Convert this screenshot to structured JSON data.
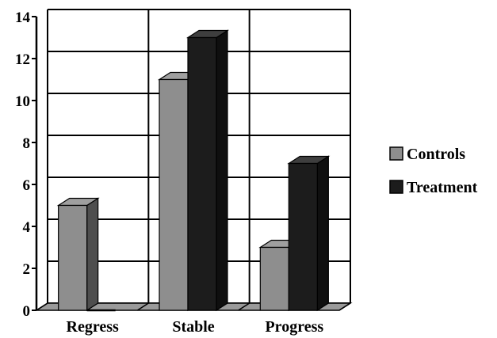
{
  "chart_data": {
    "type": "bar",
    "style": "3d-clustered",
    "categories": [
      "Regress",
      "Stable",
      "Progress"
    ],
    "series": [
      {
        "name": "Controls",
        "values": [
          5,
          11,
          3
        ],
        "color": "#8e8e8e"
      },
      {
        "name": "Treatment",
        "values": [
          0,
          13,
          7
        ],
        "color": "#1c1c1c"
      }
    ],
    "ylim": [
      0,
      14
    ],
    "yticks": [
      0,
      2,
      4,
      6,
      8,
      10,
      12,
      14
    ],
    "grid": true,
    "legend": "right"
  }
}
